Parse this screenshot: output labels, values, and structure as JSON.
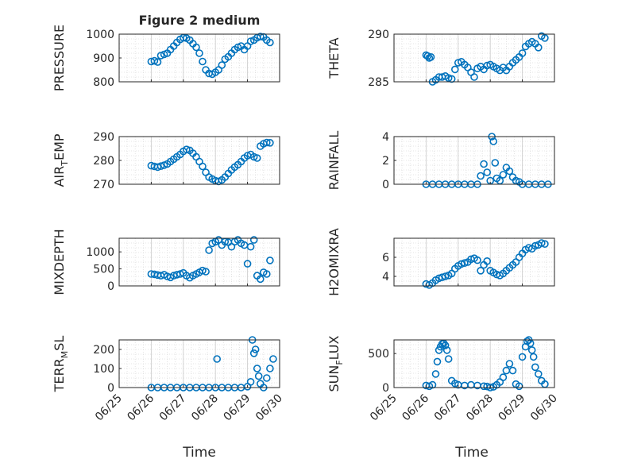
{
  "figure": {
    "title": "Figure 2 medium",
    "xlabel": "Time"
  },
  "chart_data": [
    {
      "type": "scatter",
      "ylabel": "PRESSURE",
      "ylim": [
        800,
        1000
      ],
      "yticks": [
        "800",
        "900",
        "1000"
      ],
      "xticks": [],
      "grid": true,
      "x": [
        26.0,
        26.1,
        26.2,
        26.3,
        26.4,
        26.5,
        26.6,
        26.7,
        26.8,
        26.9,
        27.0,
        27.1,
        27.2,
        27.3,
        27.4,
        27.5,
        27.6,
        27.7,
        27.8,
        27.9,
        28.0,
        28.1,
        28.2,
        28.3,
        28.4,
        28.5,
        28.6,
        28.7,
        28.8,
        28.9,
        29.0,
        29.1,
        29.2,
        29.3,
        29.4,
        29.5,
        29.6,
        29.7
      ],
      "y": [
        885,
        888,
        883,
        910,
        915,
        920,
        935,
        950,
        965,
        978,
        985,
        983,
        975,
        960,
        945,
        920,
        885,
        850,
        835,
        832,
        840,
        850,
        870,
        895,
        905,
        920,
        935,
        945,
        950,
        935,
        950,
        970,
        975,
        985,
        990,
        988,
        975,
        965
      ]
    },
    {
      "type": "scatter",
      "ylabel": "THETA",
      "ylim": [
        285,
        290
      ],
      "yticks": [
        "285",
        "290"
      ],
      "xticks": [],
      "grid": true,
      "x": [
        26.0,
        26.05,
        26.1,
        26.15,
        26.2,
        26.3,
        26.4,
        26.5,
        26.6,
        26.7,
        26.8,
        26.9,
        27.0,
        27.1,
        27.2,
        27.3,
        27.4,
        27.5,
        27.6,
        27.7,
        27.8,
        27.9,
        28.0,
        28.1,
        28.2,
        28.3,
        28.4,
        28.5,
        28.6,
        28.7,
        28.8,
        28.9,
        29.0,
        29.1,
        29.2,
        29.3,
        29.4,
        29.5,
        29.6,
        29.7
      ],
      "y": [
        287.8,
        287.7,
        287.5,
        287.6,
        285.0,
        285.2,
        285.5,
        285.5,
        285.6,
        285.4,
        285.3,
        286.3,
        287.0,
        287.1,
        286.8,
        286.5,
        286.0,
        285.5,
        286.4,
        286.6,
        286.3,
        286.7,
        286.8,
        286.6,
        286.4,
        286.2,
        286.5,
        286.2,
        286.6,
        287.0,
        287.3,
        287.6,
        288.0,
        288.7,
        289.0,
        289.2,
        289.0,
        288.6,
        289.8,
        289.6
      ]
    },
    {
      "type": "scatter",
      "ylabel": "AIR_TEMP",
      "ylim": [
        270,
        290
      ],
      "yticks": [
        "270",
        "280",
        "290"
      ],
      "xticks": [],
      "grid": true,
      "x": [
        26.0,
        26.1,
        26.2,
        26.3,
        26.4,
        26.5,
        26.6,
        26.7,
        26.8,
        26.9,
        27.0,
        27.1,
        27.2,
        27.3,
        27.4,
        27.5,
        27.6,
        27.7,
        27.8,
        27.9,
        28.0,
        28.1,
        28.2,
        28.3,
        28.4,
        28.5,
        28.6,
        28.7,
        28.8,
        28.9,
        29.0,
        29.1,
        29.2,
        29.3,
        29.4,
        29.5,
        29.6,
        29.7
      ],
      "y": [
        277.8,
        277.5,
        277.2,
        277.6,
        278.0,
        278.5,
        279.5,
        280.5,
        281.5,
        282.5,
        283.8,
        284.6,
        284.2,
        283.0,
        281.5,
        279.5,
        277.5,
        275.0,
        273.0,
        272.2,
        271.5,
        271.2,
        271.8,
        273.0,
        274.5,
        276.0,
        277.2,
        278.2,
        279.5,
        281.0,
        282.0,
        282.5,
        281.5,
        281.0,
        286.0,
        287.0,
        287.5,
        287.4
      ]
    },
    {
      "type": "scatter",
      "ylabel": "RAINFALL",
      "ylim": [
        0,
        4
      ],
      "yticks": [
        "0",
        "2",
        "4"
      ],
      "xticks": [],
      "grid": true,
      "x": [
        26.0,
        26.2,
        26.4,
        26.6,
        26.8,
        27.0,
        27.2,
        27.4,
        27.6,
        27.7,
        27.8,
        27.9,
        28.0,
        28.05,
        28.1,
        28.15,
        28.2,
        28.3,
        28.4,
        28.5,
        28.6,
        28.7,
        28.8,
        28.9,
        29.0,
        29.2,
        29.4,
        29.6,
        29.8
      ],
      "y": [
        0,
        0,
        0,
        0,
        0,
        0,
        0,
        0,
        0,
        0.7,
        1.7,
        1.0,
        0.3,
        4.0,
        3.6,
        1.8,
        0.5,
        0.3,
        0.8,
        1.4,
        1.1,
        0.6,
        0.3,
        0.2,
        0,
        0,
        0,
        0,
        0
      ]
    },
    {
      "type": "scatter",
      "ylabel": "MIXDEPTH",
      "ylim": [
        0,
        1400
      ],
      "yticks": [
        "0",
        "500",
        "1000"
      ],
      "xticks": [],
      "grid": true,
      "x": [
        26.0,
        26.1,
        26.2,
        26.3,
        26.4,
        26.5,
        26.6,
        26.7,
        26.8,
        26.9,
        27.0,
        27.1,
        27.2,
        27.3,
        27.4,
        27.5,
        27.6,
        27.7,
        27.8,
        27.9,
        28.0,
        28.1,
        28.2,
        28.3,
        28.4,
        28.5,
        28.6,
        28.7,
        28.8,
        28.9,
        29.0,
        29.1,
        29.2,
        29.3,
        29.4,
        29.5,
        29.6,
        29.7
      ],
      "y": [
        350,
        340,
        320,
        300,
        330,
        280,
        250,
        300,
        330,
        350,
        380,
        300,
        240,
        300,
        350,
        400,
        450,
        420,
        1050,
        1250,
        1300,
        1350,
        1200,
        1300,
        1280,
        1150,
        1300,
        1350,
        1250,
        1200,
        650,
        1150,
        1350,
        300,
        200,
        400,
        350,
        750
      ]
    },
    {
      "type": "scatter",
      "ylabel": "H2OMIXRA",
      "ylim": [
        3,
        8
      ],
      "yticks": [
        "4",
        "6"
      ],
      "xticks": [],
      "grid": true,
      "x": [
        26.0,
        26.1,
        26.2,
        26.3,
        26.4,
        26.5,
        26.6,
        26.7,
        26.8,
        26.9,
        27.0,
        27.1,
        27.2,
        27.3,
        27.4,
        27.5,
        27.6,
        27.7,
        27.8,
        27.9,
        28.0,
        28.1,
        28.2,
        28.3,
        28.4,
        28.5,
        28.6,
        28.7,
        28.8,
        28.9,
        29.0,
        29.1,
        29.2,
        29.3,
        29.4,
        29.5,
        29.6,
        29.7
      ],
      "y": [
        3.2,
        3.1,
        3.3,
        3.6,
        3.8,
        3.9,
        4.0,
        4.1,
        4.3,
        4.8,
        5.1,
        5.3,
        5.4,
        5.5,
        5.8,
        5.9,
        5.7,
        4.6,
        5.2,
        5.6,
        4.6,
        4.4,
        4.2,
        4.1,
        4.3,
        4.6,
        4.9,
        5.2,
        5.5,
        6.0,
        6.4,
        6.8,
        7.0,
        6.9,
        7.2,
        7.3,
        7.5,
        7.4
      ]
    },
    {
      "type": "scatter",
      "ylabel": "TERR_MSL",
      "ylim": [
        0,
        250
      ],
      "yticks": [
        "0",
        "100",
        "200"
      ],
      "xticks": [
        "06/25",
        "06/26",
        "06/27",
        "06/28",
        "06/29",
        "06/30"
      ],
      "grid": true,
      "x": [
        26.0,
        26.2,
        26.4,
        26.6,
        26.8,
        27.0,
        27.2,
        27.4,
        27.6,
        27.8,
        28.0,
        28.05,
        28.2,
        28.4,
        28.6,
        28.8,
        29.0,
        29.1,
        29.15,
        29.2,
        29.25,
        29.3,
        29.35,
        29.4,
        29.5,
        29.6,
        29.7,
        29.8
      ],
      "y": [
        0,
        0,
        0,
        0,
        0,
        0,
        0,
        0,
        0,
        0,
        0,
        150,
        0,
        0,
        0,
        0,
        5,
        30,
        250,
        180,
        200,
        100,
        60,
        20,
        0,
        50,
        100,
        150
      ]
    },
    {
      "type": "scatter",
      "ylabel": "SUN_FLUX",
      "ylim": [
        0,
        700
      ],
      "yticks": [
        "0",
        "500"
      ],
      "xticks": [
        "06/25",
        "06/26",
        "06/27",
        "06/28",
        "06/29",
        "06/30"
      ],
      "grid": true,
      "x": [
        26.0,
        26.1,
        26.2,
        26.3,
        26.35,
        26.4,
        26.45,
        26.5,
        26.55,
        26.6,
        26.65,
        26.7,
        26.8,
        26.9,
        27.0,
        27.2,
        27.4,
        27.6,
        27.8,
        27.9,
        28.0,
        28.1,
        28.2,
        28.3,
        28.4,
        28.5,
        28.6,
        28.7,
        28.8,
        28.9,
        29.0,
        29.1,
        29.15,
        29.2,
        29.25,
        29.3,
        29.35,
        29.4,
        29.5,
        29.6,
        29.7
      ],
      "y": [
        30,
        20,
        40,
        200,
        380,
        550,
        600,
        640,
        650,
        620,
        550,
        420,
        100,
        60,
        40,
        30,
        40,
        30,
        20,
        15,
        0,
        10,
        40,
        80,
        150,
        250,
        350,
        250,
        50,
        20,
        450,
        600,
        680,
        700,
        650,
        550,
        450,
        300,
        200,
        100,
        50
      ]
    }
  ]
}
